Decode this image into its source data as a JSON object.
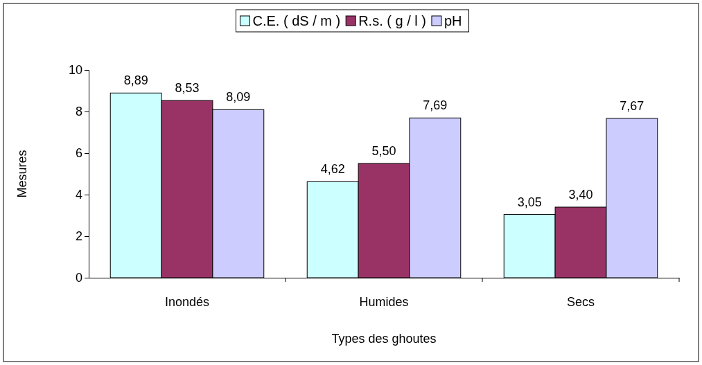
{
  "chart_data": {
    "type": "bar",
    "xlabel": "Types des ghoutes",
    "ylabel": "Mesures",
    "categories": [
      "Inondés",
      "Humides",
      "Secs"
    ],
    "series": [
      {
        "name": "C.E. ( dS / m )",
        "color": "#ccffff",
        "values": [
          8.89,
          4.62,
          3.05
        ],
        "value_labels": [
          "8,89",
          "4,62",
          "3,05"
        ]
      },
      {
        "name": "R.s. ( g / l )",
        "color": "#993366",
        "values": [
          8.53,
          5.5,
          3.4
        ],
        "value_labels": [
          "8,53",
          "5,50",
          "3,40"
        ]
      },
      {
        "name": "pH",
        "color": "#ccccff",
        "values": [
          8.09,
          7.69,
          7.67
        ],
        "value_labels": [
          "8,09",
          "7,69",
          "7,67"
        ]
      }
    ],
    "ylim": [
      0,
      10
    ],
    "yticks": [
      0,
      2,
      4,
      6,
      8,
      10
    ],
    "grid": false,
    "legend": "top"
  }
}
